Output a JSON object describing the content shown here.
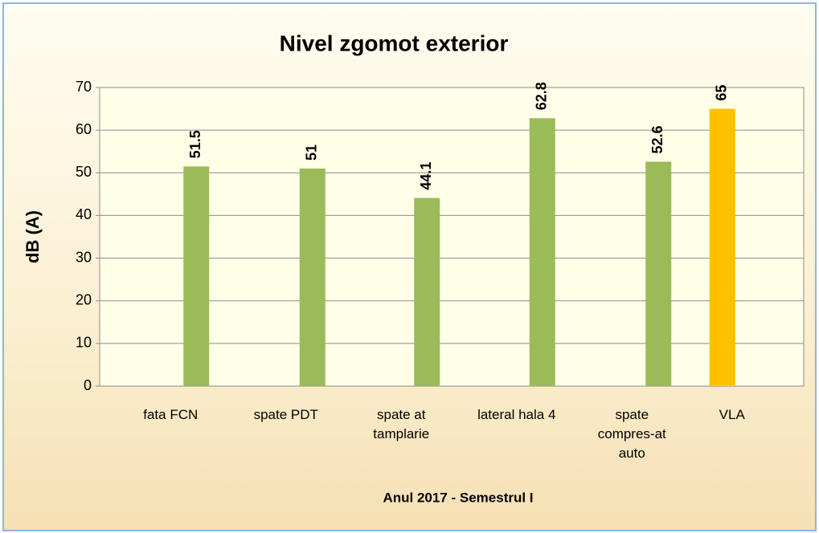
{
  "chart_data": {
    "type": "bar",
    "title": "Nivel zgomot exterior",
    "x_label": "Anul 2017 - Semestrul I",
    "y_label": "dB (A)",
    "categories": [
      "fata FCN",
      "spate PDT",
      "spate at\ntamplarie",
      "lateral hala 4",
      "spate\ncompres-at\nauto",
      "VLA"
    ],
    "values": [
      51.5,
      51,
      44.1,
      62.8,
      52.6,
      65
    ],
    "colors": [
      "#9bbb59",
      "#9bbb59",
      "#9bbb59",
      "#9bbb59",
      "#9bbb59",
      "#ffc000"
    ],
    "ylim": [
      0,
      70
    ],
    "yticks": [
      0,
      10,
      20,
      30,
      40,
      50,
      60,
      70
    ],
    "grid": true
  }
}
